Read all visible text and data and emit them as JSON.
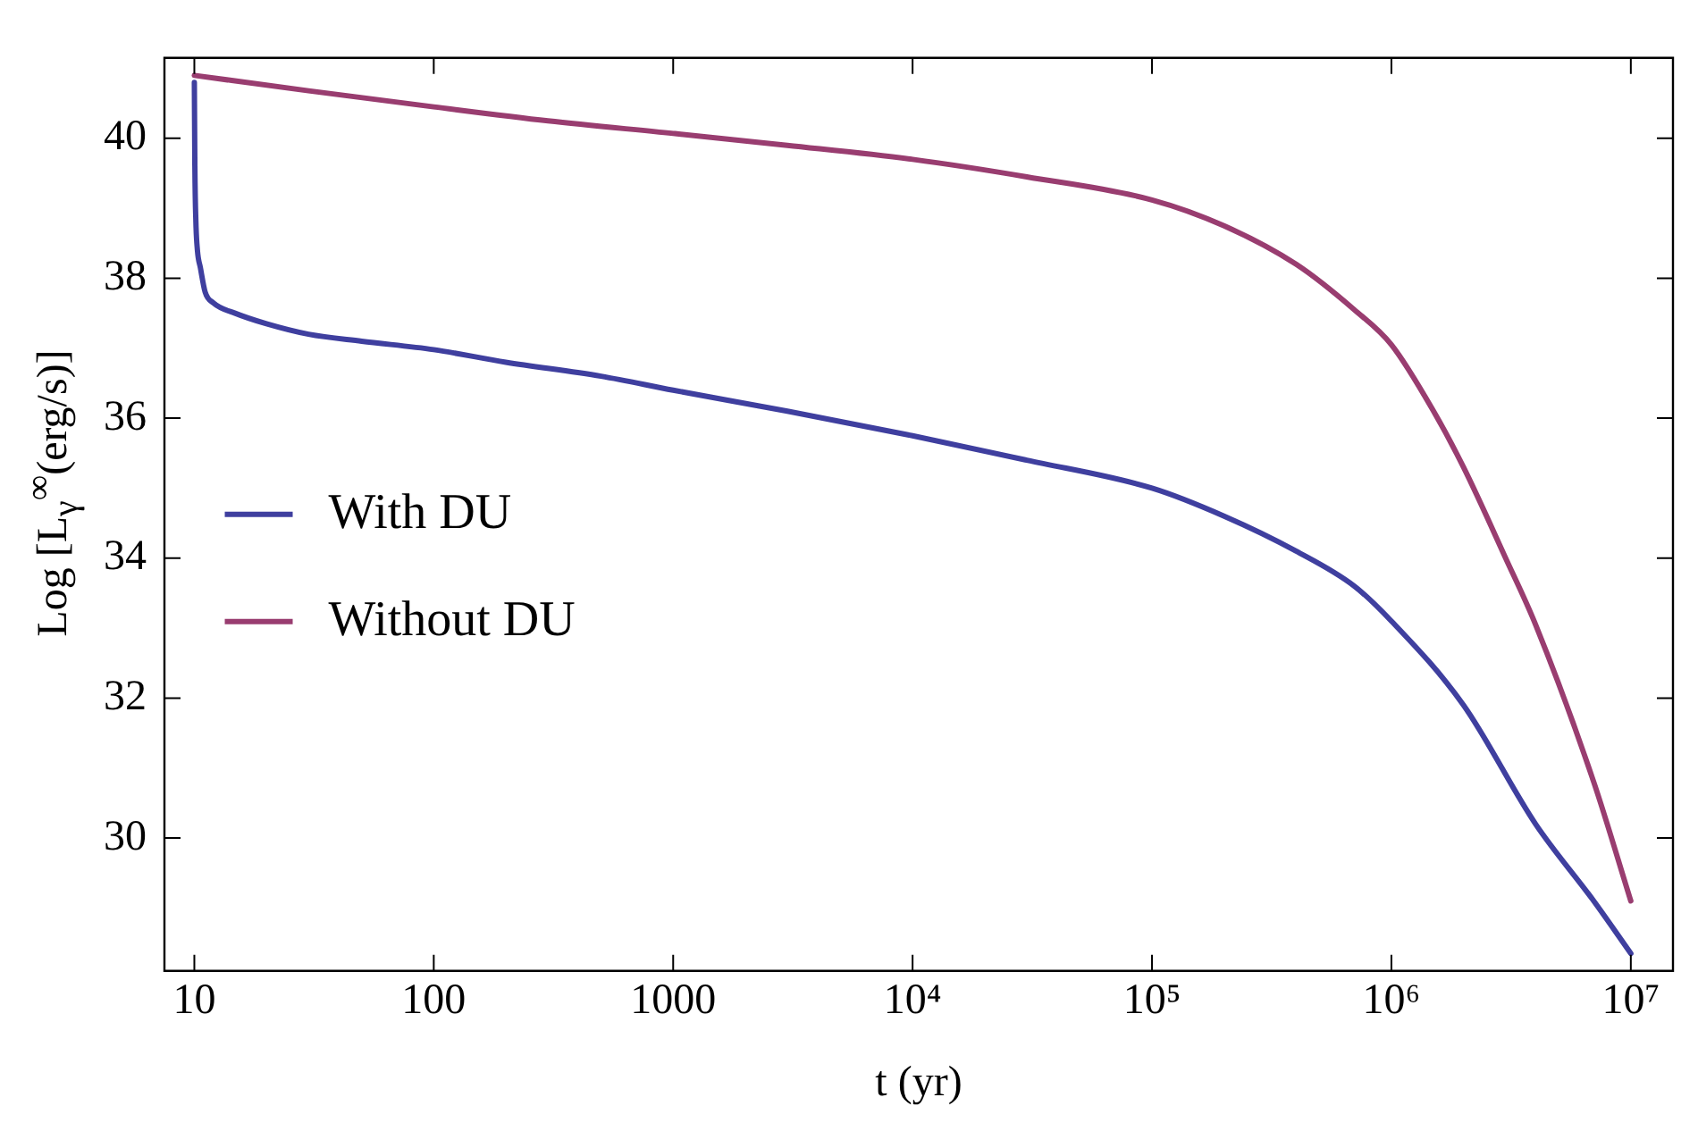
{
  "chart_data": {
    "type": "line",
    "xlabel": "t (yr)",
    "ylabel": "Log [L$_{γ}$$^{∞}$(erg/s)]",
    "log": "x",
    "xlim": [
      7.5,
      15000000
    ],
    "xticks": [
      10,
      100,
      1000,
      {
        "value": 10000,
        "label": "10⁴"
      },
      {
        "value": 100000,
        "label": "10⁵"
      },
      {
        "value": 1000000,
        "label": "10⁶"
      },
      {
        "value": 10000000,
        "label": "10⁷"
      }
    ],
    "ylim": [
      28.1,
      41.15
    ],
    "yticks": [
      30,
      32,
      34,
      36,
      38,
      40
    ],
    "grid": false,
    "legend": "left",
    "marker": "none",
    "line_style": "solid",
    "series": [
      {
        "name": "With DU",
        "color": "#3f3f9f",
        "x": [
          10,
          10.05,
          10.15,
          10.3,
          10.6,
          11.1,
          12,
          14.8,
          20,
          30,
          50,
          100,
          200,
          500,
          1000,
          3000,
          10000,
          30000,
          100000,
          200000,
          400000,
          700000,
          1000000,
          2000000,
          4000000,
          7000000,
          10000000
        ],
        "values": [
          40.8,
          39.6,
          38.8,
          38.4,
          38.15,
          37.8,
          37.65,
          37.5,
          37.35,
          37.2,
          37.1,
          36.98,
          36.8,
          36.6,
          36.4,
          36.1,
          35.75,
          35.4,
          35.0,
          34.6,
          34.1,
          33.6,
          33.1,
          31.9,
          30.2,
          29.1,
          28.35
        ]
      },
      {
        "name": "Without DU",
        "color": "#993d70",
        "x": [
          10,
          30,
          100,
          300,
          1000,
          3000,
          10000,
          30000,
          100000,
          200000,
          400000,
          700000,
          1000000,
          1500000,
          2000000,
          3000000,
          4000000,
          7000000,
          10000000
        ],
        "values": [
          40.9,
          40.68,
          40.45,
          40.25,
          40.07,
          39.9,
          39.7,
          39.45,
          39.12,
          38.75,
          38.2,
          37.55,
          37.05,
          36.1,
          35.3,
          34.0,
          33.05,
          30.8,
          29.1
        ]
      }
    ]
  }
}
